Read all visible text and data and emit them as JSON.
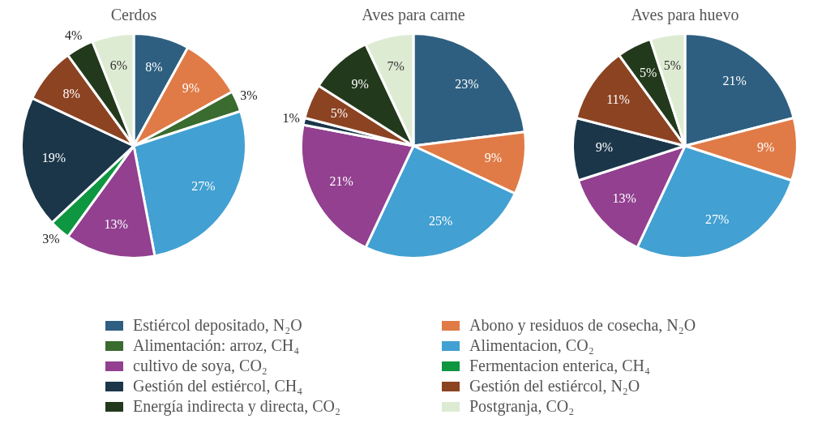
{
  "chart_data": [
    {
      "type": "pie",
      "title": "Cerdos",
      "legend": "bottom",
      "categories": [
        "Estiércol depositado, N₂O",
        "Abono y residuos de cosecha, N₂O",
        "Alimentación: arroz, CH₄",
        "Alimentacion, CO₂",
        "cultivo de soya, CO₂",
        "Fermentacion enterica, CH₄",
        "Gestión del estiércol, CH₄",
        "Gestión del estiércol, N₂O",
        "Energía indirecta y directa, CO₂",
        "Postgranja, CO₂"
      ],
      "values": [
        8,
        9,
        3,
        27,
        13,
        3,
        19,
        8,
        4,
        6
      ],
      "value_labels": [
        "8%",
        "9%",
        "3%",
        "27%",
        "13%",
        "3%",
        "19%",
        "8%",
        "4%",
        "6%"
      ],
      "colors": [
        "#2e5f80",
        "#e07b47",
        "#3a6b2f",
        "#42a0d2",
        "#92408f",
        "#0e9640",
        "#1b3649",
        "#8c4322",
        "#23391c",
        "#deebd3"
      ]
    },
    {
      "type": "pie",
      "title": "Aves para carne",
      "categories": [
        null,
        null,
        null,
        null,
        null,
        null,
        null,
        null
      ],
      "values": [
        23,
        9,
        25,
        21,
        1,
        5,
        9,
        7
      ],
      "value_labels": [
        "23%",
        "9%",
        "25%",
        "21%",
        "1%",
        "5%",
        "9%",
        "7%"
      ],
      "colors": [
        "#2e5f80",
        "#e07b47",
        "#42a0d2",
        "#92408f",
        "#1b3649",
        "#8c4322",
        "#23391c",
        "#deebd3"
      ]
    },
    {
      "type": "pie",
      "title": "Aves para huevo",
      "categories": [
        null,
        null,
        null,
        null,
        null,
        null,
        null,
        null
      ],
      "values": [
        21,
        9,
        27,
        13,
        9,
        11,
        5,
        5
      ],
      "value_labels": [
        "21%",
        "9%",
        "27%",
        "13%",
        "9%",
        "11%",
        "5%",
        "5%"
      ],
      "colors": [
        "#2e5f80",
        "#e07b47",
        "#42a0d2",
        "#92408f",
        "#1b3649",
        "#8c4322",
        "#23391c",
        "#deebd3"
      ]
    }
  ]
}
